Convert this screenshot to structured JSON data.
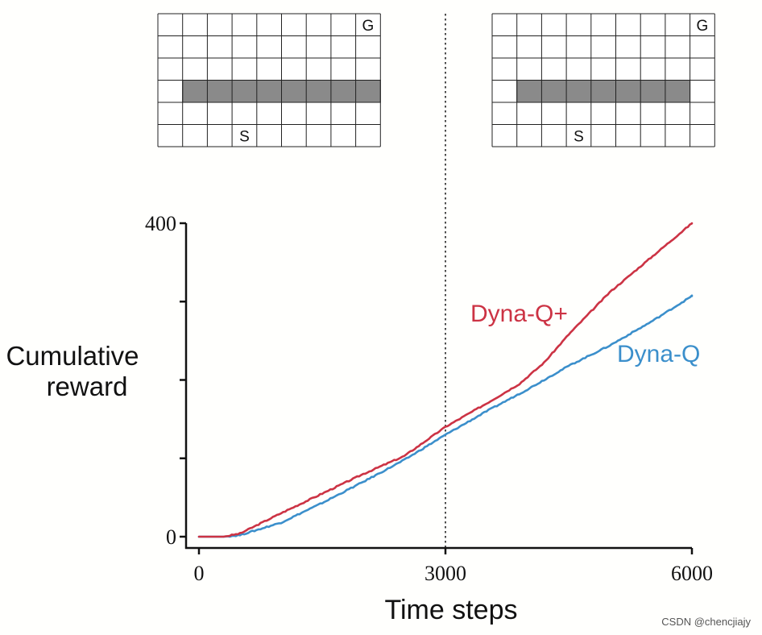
{
  "chart_data": {
    "type": "line",
    "xlabel": "Time steps",
    "ylabel": "Cumulative reward",
    "ylabel_lines": [
      "Cumulative",
      "reward"
    ],
    "xlim": [
      0,
      6000
    ],
    "ylim": [
      0,
      400
    ],
    "x_ticks": [
      0,
      3000,
      6000
    ],
    "x_tick_labels": [
      "0",
      "3000",
      "6000"
    ],
    "y_ticks": [
      0,
      100,
      200,
      300,
      400
    ],
    "y_tick_labels": [
      "0",
      "",
      "",
      "",
      "400"
    ],
    "annotation_vline": {
      "x": 3000,
      "style": "dotted",
      "meaning": "environment change"
    },
    "series": [
      {
        "name": "Dyna-Q+",
        "color": "#cc3344",
        "x": [
          0,
          300,
          500,
          1000,
          1500,
          2000,
          2500,
          3000,
          3500,
          3900,
          4200,
          4500,
          5000,
          5500,
          6000
        ],
        "y": [
          0,
          0,
          4,
          30,
          55,
          80,
          103,
          140,
          170,
          195,
          222,
          258,
          312,
          356,
          400
        ]
      },
      {
        "name": "Dyna-Q",
        "color": "#3b8fcb",
        "x": [
          0,
          300,
          500,
          1000,
          1500,
          2000,
          2500,
          3000,
          3500,
          4000,
          4500,
          5000,
          5500,
          6000
        ],
        "y": [
          0,
          0,
          2,
          18,
          43,
          70,
          98,
          130,
          160,
          188,
          218,
          244,
          274,
          307
        ]
      }
    ]
  },
  "mazes": [
    {
      "name": "maze-before",
      "cols": 9,
      "rows": 6,
      "walls": [
        [
          1,
          3
        ],
        [
          2,
          3
        ],
        [
          3,
          3
        ],
        [
          4,
          3
        ],
        [
          5,
          3
        ],
        [
          6,
          3
        ],
        [
          7,
          3
        ],
        [
          8,
          3
        ]
      ],
      "start": {
        "col": 3,
        "row": 5,
        "label": "S"
      },
      "goal": {
        "col": 8,
        "row": 0,
        "label": "G"
      }
    },
    {
      "name": "maze-after",
      "cols": 9,
      "rows": 6,
      "walls": [
        [
          1,
          3
        ],
        [
          2,
          3
        ],
        [
          3,
          3
        ],
        [
          4,
          3
        ],
        [
          5,
          3
        ],
        [
          6,
          3
        ],
        [
          7,
          3
        ]
      ],
      "start": {
        "col": 3,
        "row": 5,
        "label": "S"
      },
      "goal": {
        "col": 8,
        "row": 0,
        "label": "G"
      }
    }
  ],
  "watermark": "CSDN @chencjiajy",
  "colors": {
    "wall": "#8a8a8a",
    "grid": "#222222",
    "axis": "#111111"
  }
}
